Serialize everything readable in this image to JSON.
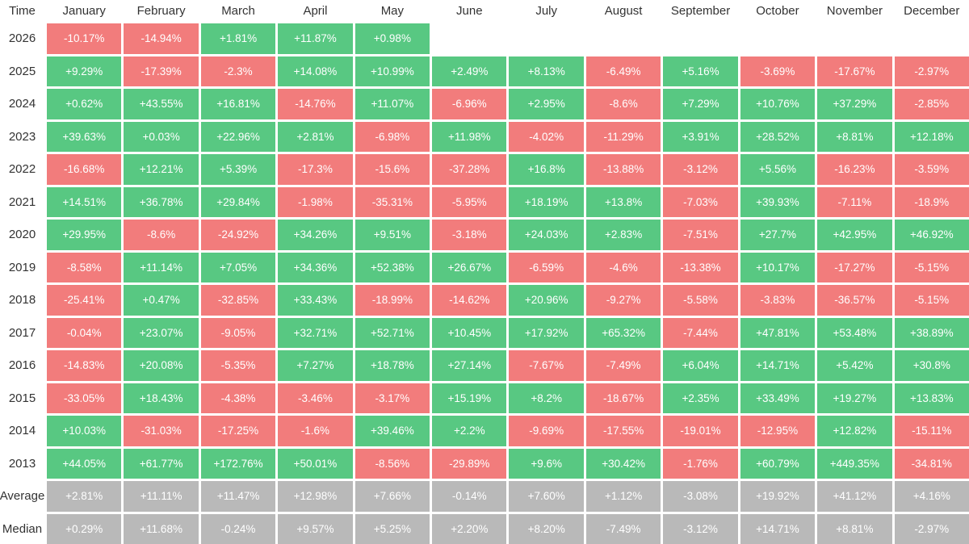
{
  "chart_data": {
    "type": "table",
    "corner_label": "Time",
    "columns": [
      "January",
      "February",
      "March",
      "April",
      "May",
      "June",
      "July",
      "August",
      "September",
      "October",
      "November",
      "December"
    ],
    "rows": [
      {
        "label": "2026",
        "values": [
          "-10.17%",
          "-14.94%",
          "+1.81%",
          "+11.87%",
          "+0.98%",
          "",
          "",
          "",
          "",
          "",
          "",
          ""
        ]
      },
      {
        "label": "2025",
        "values": [
          "+9.29%",
          "-17.39%",
          "-2.3%",
          "+14.08%",
          "+10.99%",
          "+2.49%",
          "+8.13%",
          "-6.49%",
          "+5.16%",
          "-3.69%",
          "-17.67%",
          "-2.97%"
        ]
      },
      {
        "label": "2024",
        "values": [
          "+0.62%",
          "+43.55%",
          "+16.81%",
          "-14.76%",
          "+11.07%",
          "-6.96%",
          "+2.95%",
          "-8.6%",
          "+7.29%",
          "+10.76%",
          "+37.29%",
          "-2.85%"
        ]
      },
      {
        "label": "2023",
        "values": [
          "+39.63%",
          "+0.03%",
          "+22.96%",
          "+2.81%",
          "-6.98%",
          "+11.98%",
          "-4.02%",
          "-11.29%",
          "+3.91%",
          "+28.52%",
          "+8.81%",
          "+12.18%"
        ]
      },
      {
        "label": "2022",
        "values": [
          "-16.68%",
          "+12.21%",
          "+5.39%",
          "-17.3%",
          "-15.6%",
          "-37.28%",
          "+16.8%",
          "-13.88%",
          "-3.12%",
          "+5.56%",
          "-16.23%",
          "-3.59%"
        ]
      },
      {
        "label": "2021",
        "values": [
          "+14.51%",
          "+36.78%",
          "+29.84%",
          "-1.98%",
          "-35.31%",
          "-5.95%",
          "+18.19%",
          "+13.8%",
          "-7.03%",
          "+39.93%",
          "-7.11%",
          "-18.9%"
        ]
      },
      {
        "label": "2020",
        "values": [
          "+29.95%",
          "-8.6%",
          "-24.92%",
          "+34.26%",
          "+9.51%",
          "-3.18%",
          "+24.03%",
          "+2.83%",
          "-7.51%",
          "+27.7%",
          "+42.95%",
          "+46.92%"
        ]
      },
      {
        "label": "2019",
        "values": [
          "-8.58%",
          "+11.14%",
          "+7.05%",
          "+34.36%",
          "+52.38%",
          "+26.67%",
          "-6.59%",
          "-4.6%",
          "-13.38%",
          "+10.17%",
          "-17.27%",
          "-5.15%"
        ]
      },
      {
        "label": "2018",
        "values": [
          "-25.41%",
          "+0.47%",
          "-32.85%",
          "+33.43%",
          "-18.99%",
          "-14.62%",
          "+20.96%",
          "-9.27%",
          "-5.58%",
          "-3.83%",
          "-36.57%",
          "-5.15%"
        ]
      },
      {
        "label": "2017",
        "values": [
          "-0.04%",
          "+23.07%",
          "-9.05%",
          "+32.71%",
          "+52.71%",
          "+10.45%",
          "+17.92%",
          "+65.32%",
          "-7.44%",
          "+47.81%",
          "+53.48%",
          "+38.89%"
        ]
      },
      {
        "label": "2016",
        "values": [
          "-14.83%",
          "+20.08%",
          "-5.35%",
          "+7.27%",
          "+18.78%",
          "+27.14%",
          "-7.67%",
          "-7.49%",
          "+6.04%",
          "+14.71%",
          "+5.42%",
          "+30.8%"
        ]
      },
      {
        "label": "2015",
        "values": [
          "-33.05%",
          "+18.43%",
          "-4.38%",
          "-3.46%",
          "-3.17%",
          "+15.19%",
          "+8.2%",
          "-18.67%",
          "+2.35%",
          "+33.49%",
          "+19.27%",
          "+13.83%"
        ]
      },
      {
        "label": "2014",
        "values": [
          "+10.03%",
          "-31.03%",
          "-17.25%",
          "-1.6%",
          "+39.46%",
          "+2.2%",
          "-9.69%",
          "-17.55%",
          "-19.01%",
          "-12.95%",
          "+12.82%",
          "-15.11%"
        ]
      },
      {
        "label": "2013",
        "values": [
          "+44.05%",
          "+61.77%",
          "+172.76%",
          "+50.01%",
          "-8.56%",
          "-29.89%",
          "+9.6%",
          "+30.42%",
          "-1.76%",
          "+60.79%",
          "+449.35%",
          "-34.81%"
        ]
      }
    ],
    "summary_rows": [
      {
        "label": "Average",
        "values": [
          "+2.81%",
          "+11.11%",
          "+11.47%",
          "+12.98%",
          "+7.66%",
          "-0.14%",
          "+7.60%",
          "+1.12%",
          "-3.08%",
          "+19.92%",
          "+41.12%",
          "+4.16%"
        ]
      },
      {
        "label": "Median",
        "values": [
          "+0.29%",
          "+11.68%",
          "-0.24%",
          "+9.57%",
          "+5.25%",
          "+2.20%",
          "+8.20%",
          "-7.49%",
          "-3.12%",
          "+14.71%",
          "+8.81%",
          "-2.97%"
        ]
      }
    ],
    "colors": {
      "positive": "#58c882",
      "negative": "#f27c7c",
      "summary": "#b9b9b9"
    }
  }
}
